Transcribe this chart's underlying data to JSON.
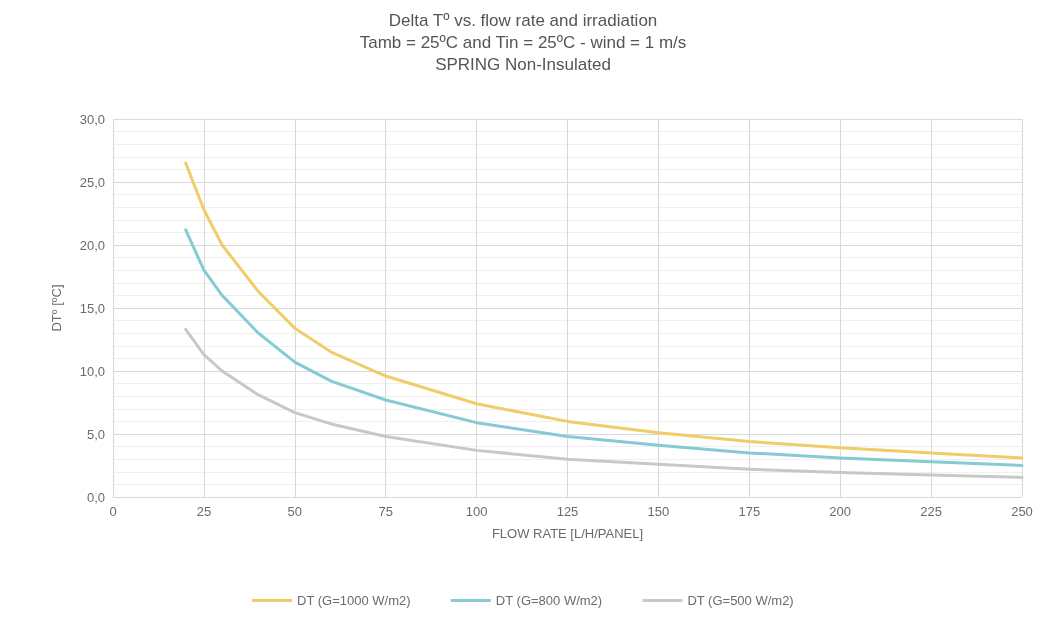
{
  "chart_data": {
    "type": "line",
    "title": "Delta Tº vs. flow rate and irradiation\nTamb = 25ºC and Tin = 25ºC - wind = 1 m/s\nSPRING Non-Insulated",
    "xlabel": "FLOW RATE [L/H/PANEL]",
    "ylabel": "DTº [ºC]",
    "x": [
      20,
      25,
      30,
      40,
      50,
      60,
      75,
      100,
      125,
      150,
      175,
      200,
      225,
      250
    ],
    "series": [
      {
        "name": "DT (G=1000 W/m2)",
        "color": "#f0cc6a",
        "values": [
          26.5,
          22.8,
          20.0,
          16.3,
          13.4,
          11.5,
          9.6,
          7.4,
          6.0,
          5.1,
          4.4,
          3.9,
          3.5,
          3.1
        ]
      },
      {
        "name": "DT (G=800 W/m2)",
        "color": "#86cad4",
        "values": [
          21.2,
          18.0,
          16.0,
          13.0,
          10.7,
          9.2,
          7.7,
          5.9,
          4.8,
          4.1,
          3.5,
          3.1,
          2.8,
          2.5
        ]
      },
      {
        "name": "DT (G=500 W/m2)",
        "color": "#c8c8c8",
        "values": [
          13.3,
          11.3,
          10.0,
          8.1,
          6.7,
          5.8,
          4.8,
          3.7,
          3.0,
          2.6,
          2.2,
          1.95,
          1.75,
          1.55
        ]
      }
    ],
    "xlim": [
      0,
      250
    ],
    "xticks": [
      0,
      25,
      50,
      75,
      100,
      125,
      150,
      175,
      200,
      225,
      250
    ],
    "ylim": [
      0,
      30
    ],
    "yticks": [
      {
        "value": 0,
        "label": "0,0"
      },
      {
        "value": 5,
        "label": "5,0"
      },
      {
        "value": 10,
        "label": "10,0"
      },
      {
        "value": 15,
        "label": "15,0"
      },
      {
        "value": 20,
        "label": "20,0"
      },
      {
        "value": 25,
        "label": "25,0"
      },
      {
        "value": 30,
        "label": "30,0"
      }
    ],
    "grid": true,
    "legend": "bottom",
    "marker": "none",
    "line_style": "solid"
  }
}
